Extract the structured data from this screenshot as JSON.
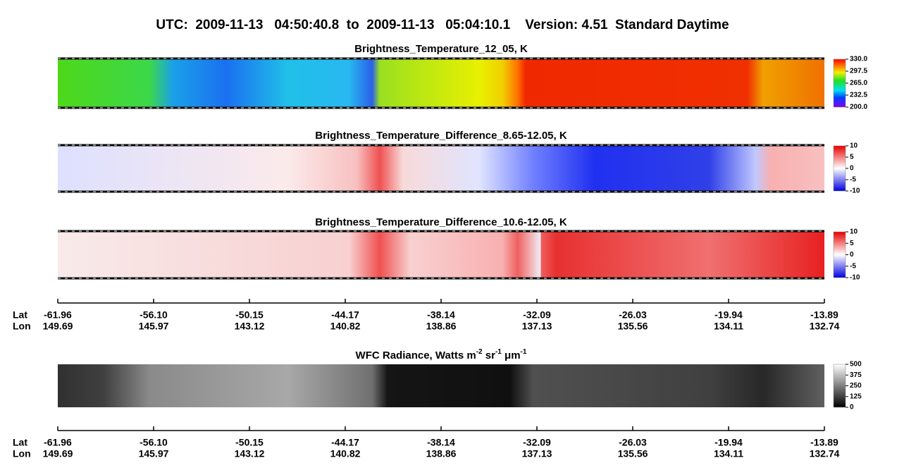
{
  "title": "UTC:  2009-11-13   04:50:40.8  to  2009-11-13   05:04:10.1    Version: 4.51  Standard Daytime",
  "chart_data": [
    {
      "type": "heatmap",
      "title": "Brightness_Temperature_12_05, K",
      "colormap": "rainbow",
      "zlim": [
        200,
        330
      ],
      "zticks": [
        {
          "value": 200,
          "label": "200.0"
        },
        {
          "value": 232.5,
          "label": "232.5"
        },
        {
          "value": 265,
          "label": "265.0"
        },
        {
          "value": 297.5,
          "label": "297.5"
        },
        {
          "value": 330,
          "label": "330.0"
        }
      ]
    },
    {
      "type": "heatmap",
      "title": "Brightness_Temperature_Difference_8.65-12.05, K",
      "colormap": "diverging",
      "zlim": [
        -10,
        10
      ],
      "zticks": [
        -10,
        -5,
        0,
        5,
        10
      ]
    },
    {
      "type": "heatmap",
      "title": "Brightness_Temperature_Difference_10.6-12.05, K",
      "colormap": "diverging",
      "zlim": [
        -10,
        10
      ],
      "zticks": [
        -10,
        -5,
        0,
        5,
        10
      ],
      "xaxis": {
        "lat_label": "Lat",
        "lon_label": "Lon",
        "lat": [
          -61.96,
          {
            "value": -56.1,
            "label": "-56.10"
          },
          -50.15,
          -44.17,
          -38.14,
          -32.09,
          -26.03,
          -19.94,
          -13.89
        ],
        "lon": [
          149.69,
          145.97,
          143.12,
          140.82,
          138.86,
          137.13,
          135.56,
          134.11,
          132.74
        ]
      }
    },
    {
      "type": "heatmap",
      "title_parts": [
        "WFC Radiance, Watts m",
        "-2",
        " sr",
        "-1",
        " μm",
        "-1"
      ],
      "colormap": "gray",
      "zlim": [
        0,
        500
      ],
      "zticks": [
        0,
        125,
        250,
        375,
        500
      ],
      "xaxis": {
        "lat_label": "Lat",
        "lon_label": "Lon",
        "lat": [
          -61.96,
          {
            "value": -56.1,
            "label": "-56.10"
          },
          -50.15,
          -44.17,
          -38.14,
          -32.09,
          -26.03,
          -19.94,
          -13.89
        ],
        "lon": [
          149.69,
          145.97,
          143.12,
          140.82,
          138.86,
          137.13,
          135.56,
          134.11,
          132.74
        ]
      }
    }
  ]
}
